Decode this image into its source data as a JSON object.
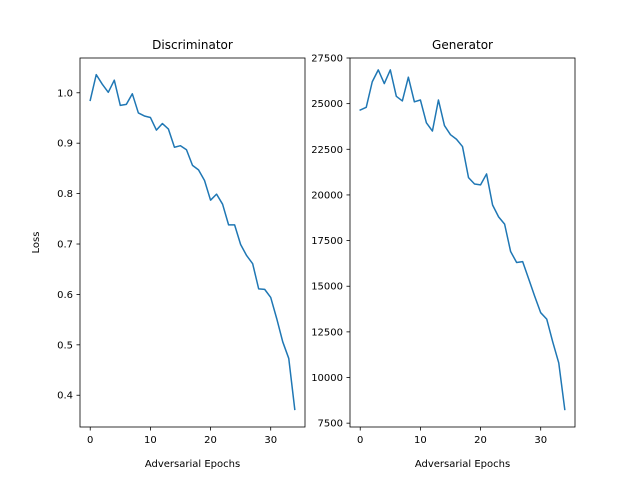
{
  "chart_data": [
    {
      "type": "line",
      "title": "Discriminator",
      "xlabel": "Adversarial Epochs",
      "ylabel": "Loss",
      "xlim": [
        -1.7,
        35.7
      ],
      "ylim": [
        0.337,
        1.069
      ],
      "xticks": [
        0,
        10,
        20,
        30
      ],
      "yticks": [
        0.4,
        0.5,
        0.6,
        0.7,
        0.8,
        0.9,
        1.0
      ],
      "ytick_labels": [
        "0.4",
        "0.5",
        "0.6",
        "0.7",
        "0.8",
        "0.9",
        "1.0"
      ],
      "grid": false,
      "color": "#1f77b4",
      "x": [
        0,
        1,
        2,
        3,
        4,
        5,
        6,
        7,
        8,
        9,
        10,
        11,
        12,
        13,
        14,
        15,
        16,
        17,
        18,
        19,
        20,
        21,
        22,
        23,
        24,
        25,
        26,
        27,
        28,
        29,
        30,
        31,
        32,
        33,
        34
      ],
      "values": [
        0.985,
        1.036,
        1.017,
        1.001,
        1.025,
        0.975,
        0.977,
        0.998,
        0.96,
        0.954,
        0.951,
        0.926,
        0.939,
        0.928,
        0.892,
        0.895,
        0.887,
        0.856,
        0.847,
        0.826,
        0.787,
        0.799,
        0.779,
        0.738,
        0.738,
        0.699,
        0.677,
        0.661,
        0.611,
        0.61,
        0.594,
        0.552,
        0.506,
        0.473,
        0.372
      ]
    },
    {
      "type": "line",
      "title": "Generator",
      "xlabel": "Adversarial Epochs",
      "ylabel": "",
      "xlim": [
        -1.7,
        35.7
      ],
      "ylim": [
        7290,
        27500
      ],
      "xticks": [
        0,
        10,
        20,
        30
      ],
      "yticks": [
        7500,
        10000,
        12500,
        15000,
        17500,
        20000,
        22500,
        25000,
        27500
      ],
      "ytick_labels": [
        "7500",
        "10000",
        "12500",
        "15000",
        "17500",
        "20000",
        "22500",
        "25000",
        "27500"
      ],
      "grid": false,
      "color": "#1f77b4",
      "x": [
        0,
        1,
        2,
        3,
        4,
        5,
        6,
        7,
        8,
        9,
        10,
        11,
        12,
        13,
        14,
        15,
        16,
        17,
        18,
        19,
        20,
        21,
        22,
        23,
        24,
        25,
        26,
        27,
        28,
        29,
        30,
        31,
        32,
        33,
        34
      ],
      "values": [
        24650,
        24800,
        26200,
        26850,
        26100,
        26850,
        25400,
        25150,
        26450,
        25100,
        25200,
        23950,
        23500,
        25200,
        23800,
        23300,
        23050,
        22650,
        20950,
        20600,
        20550,
        21150,
        19450,
        18800,
        18400,
        16900,
        16300,
        16350,
        15400,
        14450,
        13550,
        13200,
        11950,
        10800,
        8250
      ]
    }
  ]
}
